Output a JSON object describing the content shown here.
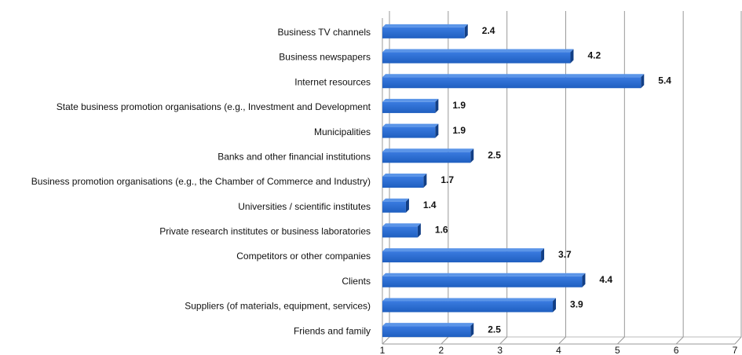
{
  "chart_data": {
    "type": "bar",
    "orientation": "horizontal",
    "categories": [
      "Business TV channels",
      "Business newspapers",
      "Internet resources",
      "State business promotion organisations (e.g., Investment and Development",
      "Municipalities",
      "Banks and other financial institutions",
      "Business promotion organisations (e.g., the Chamber of Commerce and Industry)",
      "Universities / scientific institutes",
      "Private research institutes or business laboratories",
      "Competitors or other companies",
      "Clients",
      "Suppliers (of materials, equipment, services)",
      "Friends and family"
    ],
    "values": [
      2.4,
      4.2,
      5.4,
      1.9,
      1.9,
      2.5,
      1.7,
      1.4,
      1.6,
      3.7,
      4.4,
      3.9,
      2.5
    ],
    "color": "#1f5fc0",
    "xlim": [
      1,
      7
    ],
    "xticks": [
      1,
      2,
      3,
      4,
      5,
      6,
      7
    ],
    "grid": true
  }
}
